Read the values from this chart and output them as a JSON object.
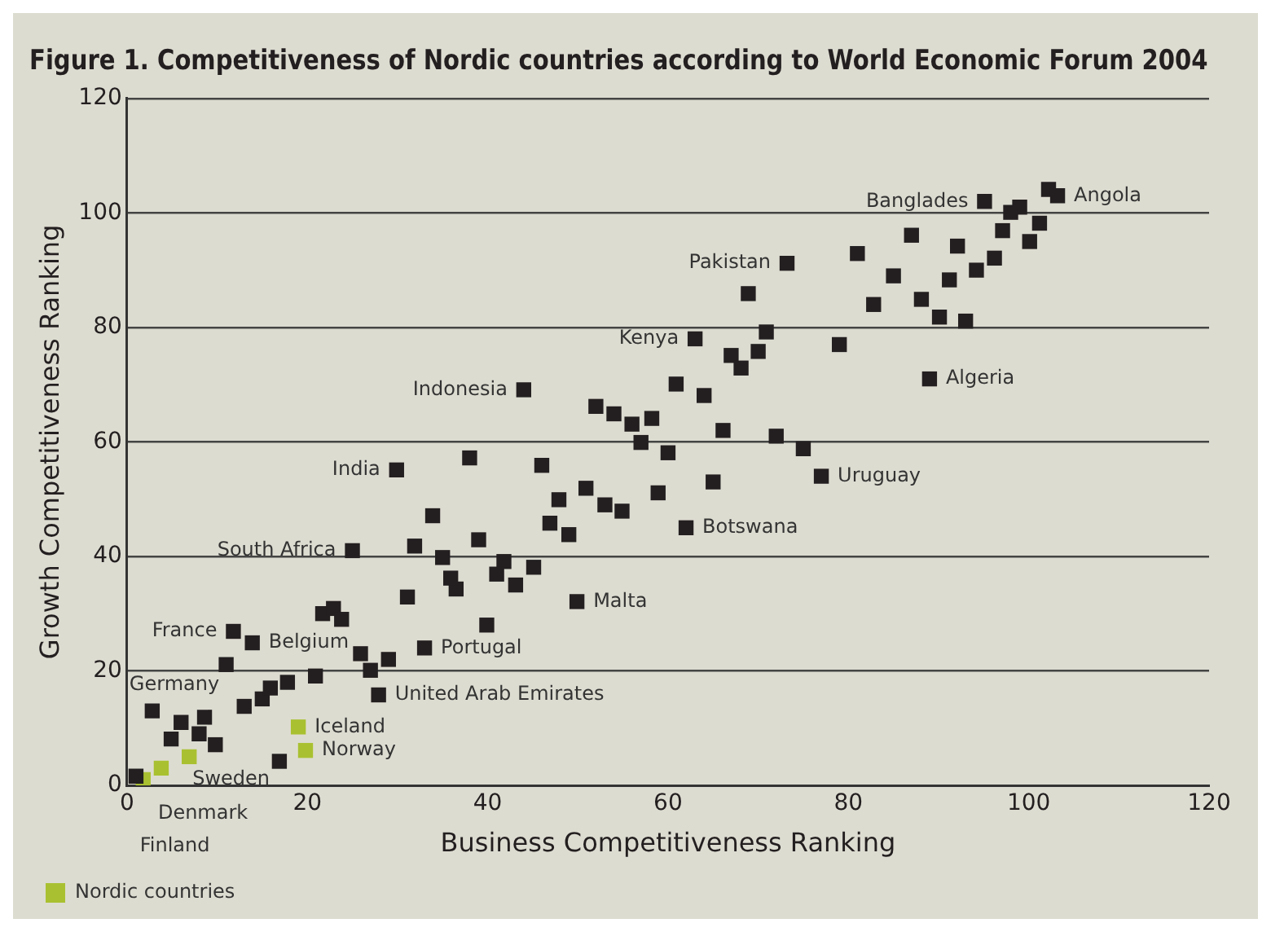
{
  "chart_data": {
    "type": "scatter",
    "title": "Figure 1. Competitiveness of Nordic countries according to World Economic Forum 2004",
    "xlabel": "Business Competitiveness Ranking",
    "ylabel": "Growth Competitiveness Ranking",
    "xlim": [
      0,
      120
    ],
    "xticks": [
      0,
      20,
      40,
      60,
      80,
      100,
      120
    ],
    "ylim": [
      0,
      120
    ],
    "yticks": [
      0,
      20,
      40,
      60,
      80,
      100,
      120
    ],
    "grid": "y",
    "legend": "bottom left",
    "marker": "square",
    "series": [
      {
        "color": "#231f20",
        "x": [
          1,
          2.8,
          6,
          8.6,
          4.9,
          8,
          9.8,
          16.9,
          13,
          15,
          15.9,
          17.8,
          20.9,
          11,
          11.8,
          13.9,
          25.9,
          27,
          29,
          27.9,
          33,
          31.1,
          21.7,
          22.9,
          23.8,
          36.5,
          44,
          38,
          46,
          29.9,
          50.9,
          47.9,
          33.9,
          46.9,
          49,
          39,
          31.9,
          25,
          35,
          41.8,
          45.1,
          41,
          35.9,
          43.1,
          49.9,
          39.9,
          60.9,
          64,
          52,
          54,
          56,
          58.2,
          57,
          60,
          66.1,
          72,
          75,
          77,
          53,
          54.9,
          58.9,
          65,
          62,
          67,
          70,
          68.1,
          95.1,
          102.2,
          103.2,
          99,
          98,
          101.2,
          97.1,
          100.1,
          87,
          92.1,
          96.2,
          94.2,
          81,
          85,
          91.2,
          82.8,
          88.1,
          90.1,
          93,
          73.2,
          68.9,
          70.9,
          63,
          79,
          89
        ],
        "values": [
          1.6,
          13,
          11,
          11.9,
          8.1,
          9,
          7.1,
          4.2,
          13.8,
          15.1,
          17,
          18,
          19.1,
          21.1,
          26.9,
          24.9,
          23,
          20.1,
          22,
          15.8,
          24,
          32.9,
          30,
          30.9,
          29,
          34.3,
          69.1,
          57.2,
          55.9,
          55.1,
          51.9,
          49.9,
          47.1,
          45.8,
          43.8,
          42.9,
          41.8,
          41,
          39.8,
          39.1,
          38.1,
          36.9,
          36.2,
          35,
          32.1,
          28,
          70.1,
          68.1,
          66.2,
          64.9,
          63.1,
          64.1,
          59.9,
          58.1,
          62,
          61,
          58.8,
          54,
          49,
          47.9,
          51.1,
          53,
          45,
          75.1,
          75.8,
          72.9,
          102,
          104.1,
          103,
          101,
          100.1,
          98.2,
          96.9,
          95,
          96.1,
          94.2,
          92.1,
          90,
          92.9,
          89,
          88.3,
          84,
          84.9,
          81.8,
          81.1,
          91.2,
          85.9,
          79.2,
          78,
          77,
          71
        ]
      },
      {
        "name": "Nordic countries",
        "color": "#a9c130",
        "x": [
          1.8,
          3.8,
          6.9,
          19,
          19.8
        ],
        "values": [
          1,
          3,
          5,
          10.2,
          6.1
        ]
      }
    ],
    "annotations": [
      {
        "text": "Germany",
        "x": 2.8,
        "y": 13
      },
      {
        "text": "France",
        "x": 11.8,
        "y": 26.9
      },
      {
        "text": "Belgium",
        "x": 13.9,
        "y": 24.9
      },
      {
        "text": "Portugal",
        "x": 33,
        "y": 24
      },
      {
        "text": "United Arab Emirates",
        "x": 27.9,
        "y": 15.8
      },
      {
        "text": "Malta",
        "x": 49.9,
        "y": 32.1
      },
      {
        "text": "Botswana",
        "x": 62,
        "y": 45
      },
      {
        "text": "Uruguay",
        "x": 77,
        "y": 54
      },
      {
        "text": "South Africa",
        "x": 25,
        "y": 41
      },
      {
        "text": "India",
        "x": 29.9,
        "y": 55.1
      },
      {
        "text": "Indonesia",
        "x": 44,
        "y": 69.1
      },
      {
        "text": "Kenya",
        "x": 63,
        "y": 78
      },
      {
        "text": "Pakistan",
        "x": 73.2,
        "y": 91.2
      },
      {
        "text": "Banglades",
        "x": 95.1,
        "y": 102
      },
      {
        "text": "Angola",
        "x": 103.2,
        "y": 103
      },
      {
        "text": "Algeria",
        "x": 89,
        "y": 71
      },
      {
        "text": "Iceland",
        "x": 19,
        "y": 10.2
      },
      {
        "text": "Norway",
        "x": 19.8,
        "y": 6.1
      },
      {
        "text": "Sweden",
        "x": 6.9,
        "y": 5
      },
      {
        "text": "Denmark",
        "x": 3.8,
        "y": 3
      },
      {
        "text": "Finland",
        "x": 1.8,
        "y": 1
      }
    ]
  }
}
